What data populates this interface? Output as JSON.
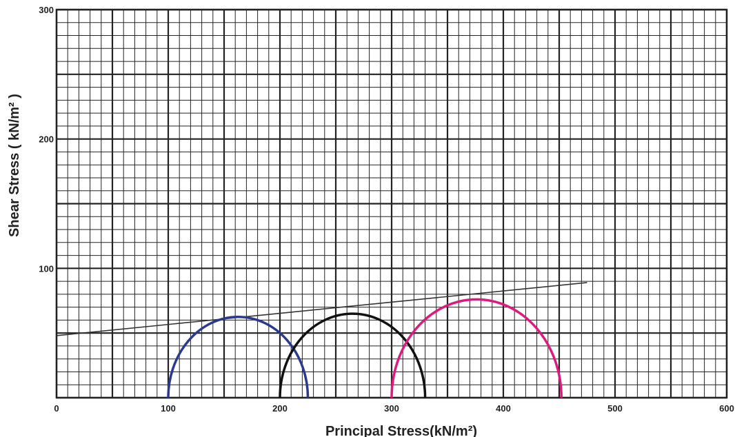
{
  "chart_data": {
    "type": "line",
    "xlabel": "Principal Stress(kN/m²)",
    "ylabel": "Shear Stress ( kN/m² )",
    "xlim": [
      0,
      600
    ],
    "ylim": [
      0,
      300
    ],
    "x_ticks": [
      "0",
      "100",
      "200",
      "300",
      "400",
      "500",
      "600"
    ],
    "y_ticks": [
      "100",
      "200",
      "300"
    ],
    "grid": true,
    "grid_minor_step": 10,
    "grid_major_step": 50,
    "envelope": {
      "x": [
        0,
        475
      ],
      "y": [
        48,
        89
      ],
      "color": "#333333"
    },
    "circles": [
      {
        "sigma3": 100,
        "sigma1": 225,
        "color": "#2b3a8f"
      },
      {
        "sigma3": 200,
        "sigma1": 330,
        "color": "#111111"
      },
      {
        "sigma3": 300,
        "sigma1": 452,
        "color": "#e0197d"
      }
    ]
  }
}
